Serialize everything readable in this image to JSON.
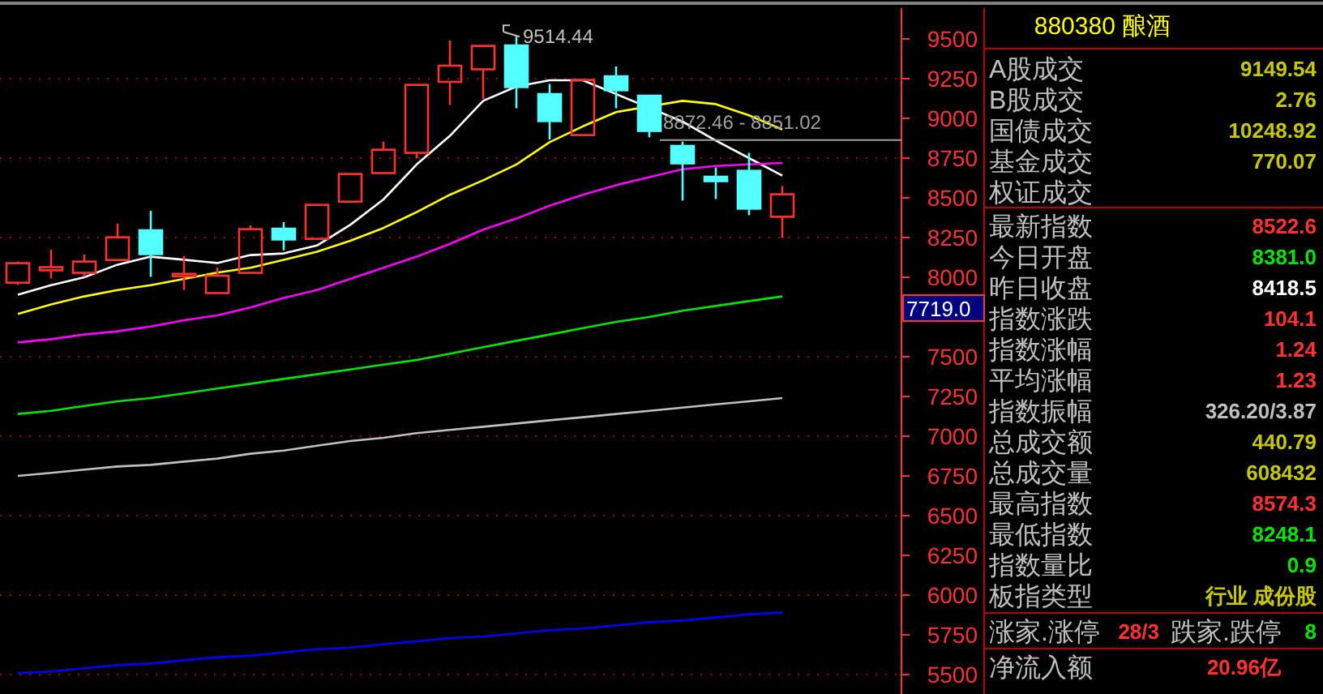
{
  "chart_data": [
    {
      "type": "candlestick",
      "categories": [
        null,
        null,
        null,
        null,
        null,
        null,
        null,
        null,
        null,
        null,
        null,
        null,
        null,
        null,
        null,
        null,
        null,
        null,
        null,
        null,
        null,
        null,
        null,
        null
      ],
      "ohlc": [
        [
          7966,
          8099,
          7952,
          8089
        ],
        [
          8044,
          8173,
          7993,
          8064
        ],
        [
          8028,
          8143,
          8003,
          8099
        ],
        [
          8109,
          8337,
          8109,
          8252
        ],
        [
          8296,
          8418,
          8003,
          8146
        ],
        [
          8012,
          8133,
          7921,
          8022
        ],
        [
          7901,
          8061,
          7901,
          8010
        ],
        [
          8028,
          8327,
          8028,
          8303
        ],
        [
          8306,
          8347,
          8170,
          8238
        ],
        [
          8242,
          8456,
          8242,
          8456
        ],
        [
          8476,
          8650,
          8476,
          8650
        ],
        [
          8656,
          8854,
          8656,
          8803
        ],
        [
          8783,
          9211,
          8748,
          9211
        ],
        [
          9230,
          9490,
          9085,
          9332
        ],
        [
          9309,
          9456,
          9122,
          9456
        ],
        [
          9459,
          9514.44,
          9064,
          9197
        ],
        [
          9153,
          9217,
          8867,
          8983
        ],
        [
          8895,
          9242,
          8895,
          9242
        ],
        [
          9265,
          9327,
          9064,
          9177
        ],
        [
          9143,
          9143,
          8881,
          8921
        ],
        [
          8827,
          8854,
          8483,
          8717
        ],
        [
          8633,
          8691,
          8493,
          8605
        ],
        [
          8670,
          8783,
          8391,
          8432
        ],
        [
          8381.0,
          8574.3,
          8248.1,
          8522.6
        ]
      ],
      "colors": [
        "#ff3232",
        "#ff3232",
        "#ff3232",
        "#ff3232",
        "#54ffff",
        "#ff3232",
        "#ff3232",
        "#ff3232",
        "#54ffff",
        "#ff3232",
        "#ff3232",
        "#ff3232",
        "#ff3232",
        "#ff3232",
        "#ff3232",
        "#54ffff",
        "#54ffff",
        "#ff3232",
        "#54ffff",
        "#54ffff",
        "#54ffff",
        "#54ffff",
        "#54ffff",
        "#ff3232"
      ],
      "series": [
        {
          "type": "line",
          "color": "#ffffff",
          "values": [
            7890,
            7950,
            8000,
            8080,
            8130,
            8110,
            8090,
            8140,
            8150,
            8200,
            8330,
            8490,
            8710,
            8890,
            9110,
            9200,
            9240,
            9240,
            null,
            null,
            8980,
            8860,
            8750,
            8640
          ]
        },
        {
          "type": "line",
          "color": "#ffff00",
          "values": [
            7770,
            7830,
            7880,
            7920,
            7950,
            7990,
            8030,
            8060,
            8110,
            8160,
            8230,
            8310,
            8410,
            8520,
            8610,
            8710,
            8850,
            8950,
            9040,
            null,
            9110,
            9090,
            9020,
            8930
          ]
        },
        {
          "type": "line",
          "color": "#ff00ff",
          "values": [
            7590,
            7610,
            7640,
            7660,
            7690,
            7730,
            7760,
            7810,
            7870,
            7920,
            7990,
            8060,
            8130,
            8210,
            8300,
            8370,
            8450,
            8520,
            8580,
            8630,
            8680,
            8700,
            8710,
            8720
          ]
        },
        {
          "type": "line",
          "color": "#00e600",
          "values": [
            7140,
            7160,
            7190,
            7220,
            7240,
            7270,
            7300,
            7330,
            7360,
            7390,
            7420,
            7450,
            7480,
            7520,
            7560,
            7600,
            7640,
            7680,
            7720,
            7750,
            7790,
            7820,
            7850,
            7880
          ]
        },
        {
          "type": "line",
          "color": "#c0c0c0",
          "values": [
            6750,
            6770,
            6790,
            6810,
            6820,
            6840,
            6860,
            6890,
            6910,
            6940,
            6970,
            6990,
            7020,
            7040,
            7060,
            7080,
            7100,
            7120,
            7140,
            7160,
            7180,
            7200,
            7220,
            7240
          ]
        },
        {
          "type": "line",
          "color": "#0000ff",
          "values": [
            5510,
            5520,
            5540,
            5560,
            5570,
            5590,
            5610,
            5620,
            5640,
            5660,
            5670,
            5690,
            5710,
            5730,
            5740,
            5760,
            5780,
            5790,
            5810,
            5830,
            5840,
            5860,
            5880,
            5890
          ]
        }
      ],
      "ylim": [
        5378,
        9694
      ],
      "yticks": [
        5500,
        5750,
        6000,
        6250,
        6500,
        6750,
        7000,
        7250,
        7500,
        8000,
        8250,
        8500,
        8750,
        9000,
        9250,
        9500
      ],
      "grid": "y",
      "ref_lines": [
        {
          "axis": "y",
          "value": 8864,
          "color": "#a0a0a0"
        }
      ],
      "annotations": [
        "9514.44",
        {
          "text": "8872.46 - 8851.02",
          "y": 8864
        },
        "7719.0"
      ]
    },
    {
      "type": "other",
      "title": "880380 酿酒",
      "categories": [
        "A股成交",
        "B股成交",
        "国债成交",
        "基金成交",
        "权证成交",
        "最新指数",
        "今日开盘",
        "昨日收盘",
        "指数涨跌",
        "指数涨幅",
        "平均涨幅",
        "指数振幅",
        "总成交额",
        "总成交量",
        "最高指数",
        "最低指数",
        "指数量比",
        "板指类型",
        "涨家.涨停",
        "跌家.跌停",
        "净流入额"
      ],
      "value_labels": [
        "9149.54",
        "2.76",
        "10248.92",
        "770.07",
        null,
        "8522.6",
        "8381.0",
        "8418.5",
        "104.1",
        "1.24",
        "1.23",
        "326.20/3.87",
        "440.79",
        "608432",
        "8574.3",
        "8248.1",
        "0.9",
        "行业 成份股",
        "28/3",
        "8",
        "20.96亿"
      ],
      "colors": [
        "#c8c800",
        "#c8c800",
        "#c8c800",
        "#c8c800",
        null,
        "#ff3232",
        "#00e600",
        "#ffffff",
        "#ff3232",
        "#ff3232",
        "#ff3232",
        "#c0c0c0",
        "#c8c800",
        "#c8c800",
        "#ff3232",
        "#00e600",
        "#00e600",
        "#c8c800",
        "#ff3232",
        "#00e600",
        "#ff3232"
      ]
    }
  ]
}
